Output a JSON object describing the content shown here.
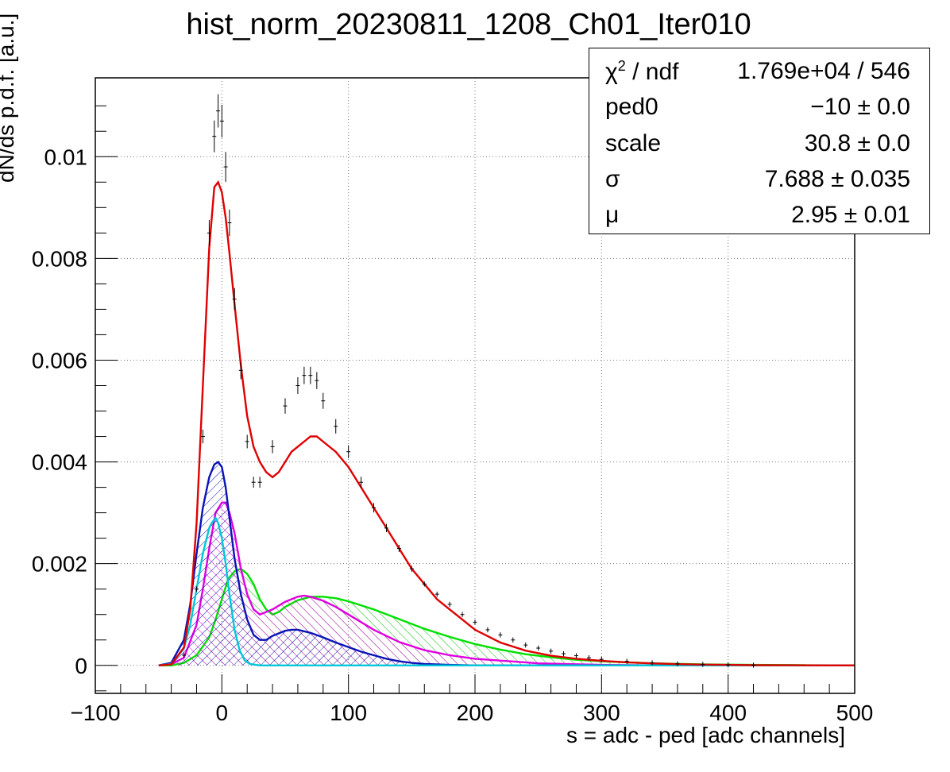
{
  "chart_data": {
    "type": "line",
    "title": "hist_norm_20230811_1208_Ch01_Iter010",
    "xlabel": "s = adc - ped [adc channels]",
    "ylabel": "dN/ds p.d.f. [a.u.]",
    "xlim": [
      -100,
      500
    ],
    "ylim": [
      -0.00055,
      0.01155
    ],
    "x_ticks": [
      "−100",
      "0",
      "100",
      "200",
      "300",
      "400",
      "500"
    ],
    "y_ticks": [
      "0",
      "0.002",
      "0.004",
      "0.006",
      "0.008",
      "0.01"
    ],
    "grid": true,
    "series": [
      {
        "name": "",
        "style": "data-points",
        "color": "#000000",
        "x": [
          -30,
          -20,
          -15,
          -10,
          -6,
          -3,
          0,
          3,
          6,
          10,
          15,
          20,
          25,
          30,
          40,
          50,
          60,
          65,
          70,
          75,
          80,
          90,
          100,
          110,
          120,
          130,
          140,
          150,
          160,
          170,
          180,
          190,
          200,
          210,
          220,
          230,
          240,
          250,
          260,
          270,
          280,
          290,
          300,
          320,
          340,
          360,
          380,
          400,
          420
        ],
        "y": [
          0.0002,
          0.0015,
          0.0045,
          0.0085,
          0.0104,
          0.0109,
          0.0107,
          0.0098,
          0.0087,
          0.0072,
          0.0058,
          0.0044,
          0.0036,
          0.0036,
          0.0043,
          0.0051,
          0.0055,
          0.0057,
          0.0057,
          0.0056,
          0.0052,
          0.0047,
          0.0042,
          0.0036,
          0.0031,
          0.0027,
          0.0023,
          0.0019,
          0.0016,
          0.0014,
          0.0012,
          0.001,
          0.00085,
          0.0007,
          0.0006,
          0.0005,
          0.0004,
          0.00034,
          0.00028,
          0.00023,
          0.00019,
          0.00015,
          0.00012,
          8e-05,
          5e-05,
          3e-05,
          2e-05,
          1e-05,
          5e-06
        ]
      },
      {
        "name": "",
        "style": "line",
        "color": "#e00000",
        "x": [
          -50,
          -40,
          -30,
          -25,
          -20,
          -15,
          -10,
          -6,
          -3,
          0,
          3,
          6,
          10,
          15,
          20,
          25,
          30,
          35,
          40,
          45,
          50,
          55,
          60,
          65,
          70,
          75,
          80,
          90,
          100,
          110,
          120,
          130,
          140,
          150,
          160,
          170,
          180,
          190,
          200,
          220,
          240,
          260,
          280,
          300,
          320,
          340,
          360,
          380,
          400,
          420,
          450,
          500
        ],
        "y": [
          0,
          2e-05,
          0.00035,
          0.0011,
          0.0028,
          0.0055,
          0.0082,
          0.0094,
          0.0095,
          0.0093,
          0.0088,
          0.0081,
          0.0071,
          0.0059,
          0.0049,
          0.0043,
          0.004,
          0.0038,
          0.0037,
          0.0038,
          0.004,
          0.0042,
          0.0043,
          0.0044,
          0.0045,
          0.0045,
          0.0044,
          0.0042,
          0.0039,
          0.0035,
          0.0031,
          0.0027,
          0.0023,
          0.0019,
          0.0016,
          0.0013,
          0.0011,
          0.0009,
          0.0007,
          0.00045,
          0.00029,
          0.00019,
          0.00013,
          9e-05,
          6e-05,
          4e-05,
          2.5e-05,
          1.5e-05,
          1e-05,
          5e-06,
          2e-06,
          0
        ]
      },
      {
        "name": "",
        "style": "line",
        "color": "#00c8d8",
        "x": [
          -50,
          -40,
          -30,
          -25,
          -20,
          -15,
          -10,
          -8,
          -5,
          -3,
          0,
          3,
          6,
          10,
          14,
          18,
          22,
          30,
          50,
          100,
          200,
          500
        ],
        "y": [
          0,
          3e-05,
          0.00033,
          0.0008,
          0.0015,
          0.0022,
          0.0027,
          0.0028,
          0.0029,
          0.0028,
          0.0025,
          0.002,
          0.0014,
          0.0007,
          0.0003,
          0.0001,
          3e-05,
          0,
          0,
          0,
          0,
          0
        ]
      },
      {
        "name": "",
        "style": "hatched-area",
        "color": "#0a14b4",
        "x": [
          -50,
          -40,
          -30,
          -25,
          -20,
          -15,
          -10,
          -6,
          -3,
          0,
          3,
          6,
          10,
          15,
          20,
          25,
          30,
          35,
          40,
          50,
          55,
          60,
          70,
          80,
          90,
          100,
          110,
          120,
          130,
          140,
          150,
          160,
          180,
          200,
          250,
          300,
          500
        ],
        "y": [
          0,
          5e-05,
          0.0005,
          0.0012,
          0.0022,
          0.0031,
          0.0037,
          0.00395,
          0.004,
          0.0039,
          0.0035,
          0.0029,
          0.0021,
          0.0014,
          0.0009,
          0.0006,
          0.0005,
          0.0005,
          0.00058,
          0.00068,
          0.0007,
          0.0007,
          0.00064,
          0.00055,
          0.00045,
          0.00036,
          0.00027,
          0.0002,
          0.00013,
          8e-05,
          5e-05,
          3e-05,
          1e-05,
          0,
          0,
          0,
          0
        ]
      },
      {
        "name": "",
        "style": "hatched-area",
        "color": "#e000e0",
        "x": [
          -50,
          -40,
          -30,
          -20,
          -15,
          -10,
          -5,
          0,
          3,
          6,
          10,
          15,
          20,
          25,
          30,
          40,
          50,
          60,
          65,
          70,
          80,
          90,
          100,
          120,
          140,
          160,
          180,
          200,
          250,
          300,
          350,
          400,
          500
        ],
        "y": [
          0,
          2e-05,
          0.00015,
          0.0008,
          0.0015,
          0.0023,
          0.003,
          0.0032,
          0.0032,
          0.003,
          0.0026,
          0.0019,
          0.0014,
          0.0011,
          0.001,
          0.0011,
          0.00125,
          0.00135,
          0.00137,
          0.00135,
          0.00127,
          0.00115,
          0.001,
          0.0007,
          0.00046,
          0.0003,
          0.0002,
          0.00013,
          4e-05,
          1e-05,
          0,
          0,
          0
        ]
      },
      {
        "name": "",
        "style": "hatched-area",
        "color": "#00e000",
        "x": [
          -50,
          -40,
          -30,
          -20,
          -10,
          -5,
          0,
          5,
          10,
          15,
          20,
          25,
          30,
          35,
          40,
          45,
          50,
          60,
          70,
          80,
          90,
          100,
          110,
          120,
          140,
          160,
          180,
          200,
          220,
          240,
          260,
          280,
          300,
          340,
          380,
          420,
          460,
          500
        ],
        "y": [
          0,
          0,
          5e-05,
          0.0002,
          0.00055,
          0.0009,
          0.0013,
          0.0017,
          0.00185,
          0.0019,
          0.0018,
          0.0016,
          0.0013,
          0.0011,
          0.001,
          0.00105,
          0.00115,
          0.00128,
          0.00135,
          0.00135,
          0.00132,
          0.00126,
          0.00118,
          0.0011,
          0.00091,
          0.00072,
          0.00056,
          0.00042,
          0.00031,
          0.00022,
          0.00016,
          0.00011,
          8e-05,
          4e-05,
          2e-05,
          1e-05,
          4e-06,
          0
        ]
      }
    ]
  },
  "stats_box": {
    "rows": [
      {
        "label_main": "χ",
        "label_sup": "2",
        "label_rest": " / ndf",
        "value": "1.769e+04 / 546"
      },
      {
        "label_main": "ped0",
        "value": "−10 ± 0.0"
      },
      {
        "label_main": "scale",
        "value": "30.8 ± 0.0"
      },
      {
        "label_main": "σ",
        "value": "7.688 ± 0.035"
      },
      {
        "label_main": "μ",
        "value": "2.95 ± 0.01"
      }
    ]
  }
}
